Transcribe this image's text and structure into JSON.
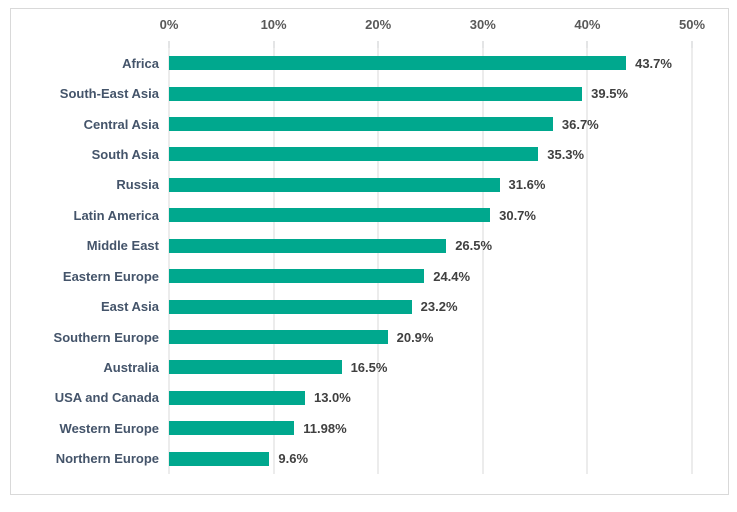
{
  "chart_data": {
    "type": "bar",
    "orientation": "horizontal",
    "categories": [
      "Africa",
      "South-East Asia",
      "Central Asia",
      "South Asia",
      "Russia",
      "Latin America",
      "Middle East",
      "Eastern Europe",
      "East Asia",
      "Southern Europe",
      "Australia",
      "USA and Canada",
      "Western Europe",
      "Northern Europe"
    ],
    "values": [
      43.7,
      39.5,
      36.7,
      35.3,
      31.6,
      30.7,
      26.5,
      24.4,
      23.2,
      20.9,
      16.5,
      13.0,
      11.98,
      9.6
    ],
    "value_labels": [
      "43.7%",
      "39.5%",
      "36.7%",
      "35.3%",
      "31.6%",
      "30.7%",
      "26.5%",
      "24.4%",
      "23.2%",
      "20.9%",
      "16.5%",
      "13.0%",
      "11.98%",
      "9.6%"
    ],
    "x_axis": {
      "position": "top",
      "min": 0,
      "max": 50,
      "tick_values": [
        0,
        10,
        20,
        30,
        40,
        50
      ],
      "ticks": [
        "0%",
        "10%",
        "20%",
        "30%",
        "40%",
        "50%"
      ]
    },
    "grid": true,
    "legend": false,
    "colors": {
      "bar": "#00A88E",
      "gridline": "#D9D9D9",
      "tick_mark": "#C8CBCE",
      "frame_border": "#D9D9D9",
      "category_label": "#44546A",
      "value_label": "#404040",
      "axis_label": "#595959",
      "background": "#FFFFFF"
    }
  }
}
